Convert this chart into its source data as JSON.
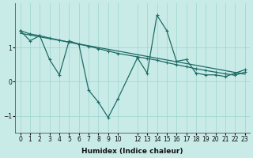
{
  "xlabel": "Humidex (Indice chaleur)",
  "bg_color": "#c8ebe8",
  "grid_color": "#9dd4cf",
  "line_color": "#1f6b65",
  "xlim": [
    -0.5,
    23.5
  ],
  "ylim": [
    -1.5,
    2.3
  ],
  "xticks": [
    0,
    1,
    2,
    3,
    4,
    5,
    6,
    7,
    8,
    9,
    10,
    12,
    13,
    14,
    15,
    16,
    17,
    18,
    19,
    20,
    21,
    22,
    23
  ],
  "yticks": [
    -1,
    0,
    1
  ],
  "volatile_x": [
    0,
    1,
    2,
    3,
    4,
    5,
    6,
    7,
    8,
    9,
    10,
    12,
    13,
    14,
    15,
    16,
    17,
    18,
    19,
    20,
    21,
    22,
    23
  ],
  "volatile_y": [
    1.5,
    1.2,
    1.35,
    0.65,
    0.2,
    1.2,
    1.1,
    -0.25,
    -0.6,
    -1.05,
    -0.5,
    0.7,
    0.25,
    1.95,
    1.5,
    0.6,
    0.65,
    0.25,
    0.2,
    0.2,
    0.15,
    0.25,
    0.35
  ],
  "trend1_x": [
    0,
    1,
    2,
    3,
    4,
    5,
    6,
    7,
    8,
    9,
    10,
    12,
    13,
    14,
    15,
    16,
    17,
    18,
    19,
    20,
    21,
    22,
    23
  ],
  "trend1_y": [
    1.5,
    1.4,
    1.35,
    1.28,
    1.22,
    1.16,
    1.1,
    1.04,
    0.97,
    0.9,
    0.83,
    0.73,
    0.68,
    0.63,
    0.56,
    0.5,
    0.44,
    0.38,
    0.33,
    0.28,
    0.23,
    0.19,
    0.28
  ],
  "trend2_x": [
    0,
    23
  ],
  "trend2_y": [
    1.42,
    0.22
  ]
}
